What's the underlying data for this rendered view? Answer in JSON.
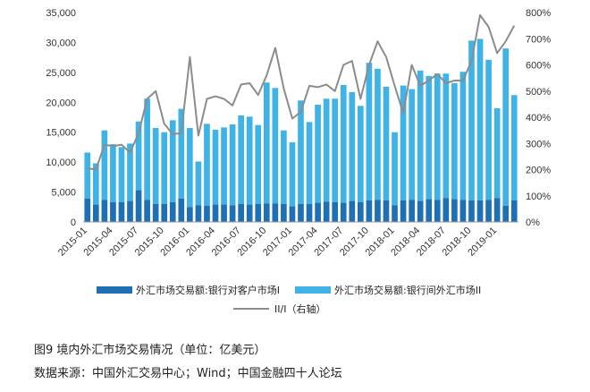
{
  "figure": {
    "title": "图9   境内外汇市场交易情况（单位：亿美元）",
    "source": "数据来源：中国外汇交易中心；Wind；中国金融四十人论坛"
  },
  "chart_data": {
    "type": "bar",
    "x": [
      "2015-01",
      "2015-02",
      "2015-03",
      "2015-04",
      "2015-05",
      "2015-06",
      "2015-07",
      "2015-08",
      "2015-09",
      "2015-10",
      "2015-11",
      "2015-12",
      "2016-01",
      "2016-02",
      "2016-03",
      "2016-04",
      "2016-05",
      "2016-06",
      "2016-07",
      "2016-08",
      "2016-09",
      "2016-10",
      "2016-11",
      "2016-12",
      "2017-01",
      "2017-02",
      "2017-03",
      "2017-04",
      "2017-05",
      "2017-06",
      "2017-07",
      "2017-08",
      "2017-09",
      "2017-10",
      "2017-11",
      "2017-12",
      "2018-01",
      "2018-02",
      "2018-03",
      "2018-04",
      "2018-05",
      "2018-06",
      "2018-07",
      "2018-08",
      "2018-09",
      "2018-10",
      "2018-11",
      "2018-12",
      "2019-01",
      "2019-02",
      "2019-03"
    ],
    "x_tick_labels": [
      "2015-01",
      "2015-04",
      "2015-07",
      "2015-10",
      "2016-01",
      "2016-04",
      "2016-07",
      "2016-10",
      "2017-01",
      "2017-04",
      "2017-07",
      "2017-10",
      "2018-01",
      "2018-04",
      "2018-07",
      "2018-10",
      "2019-01"
    ],
    "left_axis": {
      "ticks": [
        "0",
        "5,000",
        "10,000",
        "15,000",
        "20,000",
        "25,000",
        "30,000",
        "35,000"
      ],
      "ylim": [
        0,
        35000
      ]
    },
    "right_axis": {
      "ticks": [
        "0%",
        "100%",
        "200%",
        "300%",
        "400%",
        "500%",
        "600%",
        "700%",
        "800%"
      ],
      "ylim": [
        0,
        800
      ]
    },
    "series": [
      {
        "name": "外汇市场交易额:银行对客户市场I",
        "color": "#1f6fb5",
        "axis": "left",
        "values": [
          3900,
          2900,
          3700,
          3300,
          3300,
          3500,
          5300,
          3700,
          3000,
          3000,
          3300,
          3900,
          2500,
          2800,
          2700,
          2900,
          2900,
          2800,
          3000,
          2900,
          3000,
          3100,
          3100,
          3000,
          2600,
          3000,
          3000,
          3200,
          3400,
          3300,
          3200,
          3500,
          3300,
          3600,
          3700,
          3600,
          2800,
          3600,
          3700,
          3500,
          3800,
          3700,
          4000,
          3800,
          3700,
          3600,
          3600,
          3700,
          4000,
          2700,
          3600
        ]
      },
      {
        "name": "外汇市场交易额:银行间外汇市场II",
        "color": "#3fb3e6",
        "axis": "left",
        "values": [
          11600,
          9800,
          15300,
          13000,
          12500,
          13100,
          16800,
          20600,
          15700,
          15000,
          17000,
          18900,
          15700,
          10100,
          16400,
          15400,
          15800,
          16300,
          17800,
          17600,
          16200,
          23300,
          22400,
          15300,
          13300,
          20300,
          16700,
          19600,
          20600,
          20600,
          22900,
          21700,
          19400,
          26600,
          25600,
          22600,
          15000,
          22800,
          22200,
          25300,
          24400,
          24800,
          24800,
          23200,
          25100,
          30300,
          30600,
          27100,
          19000,
          29000,
          21200
        ]
      },
      {
        "name": "II/I（右轴）",
        "color": "#8c8c8c",
        "axis": "right",
        "type": "line",
        "values": [
          205,
          200,
          295,
          290,
          295,
          265,
          340,
          470,
          500,
          375,
          335,
          340,
          630,
          330,
          470,
          480,
          470,
          445,
          525,
          530,
          485,
          560,
          665,
          510,
          395,
          420,
          520,
          515,
          525,
          500,
          600,
          615,
          470,
          600,
          690,
          630,
          520,
          415,
          600,
          520,
          540,
          565,
          530,
          540,
          540,
          615,
          790,
          745,
          645,
          690,
          750
        ]
      }
    ],
    "legend_position": "bottom"
  }
}
